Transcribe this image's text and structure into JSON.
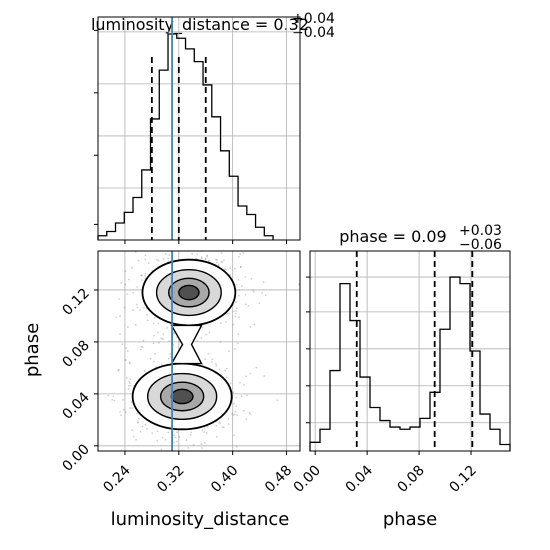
{
  "chart_data": [
    {
      "type": "histogram",
      "panel": "luminosity_distance 1D marginal",
      "title_param": "luminosity_distance",
      "title_value": "0.32",
      "title_plus": "+0.04",
      "title_minus": "−0.04",
      "xlim": [
        0.2,
        0.5
      ],
      "grid": true,
      "bin_edges": [
        0.2,
        0.213,
        0.226,
        0.239,
        0.252,
        0.265,
        0.278,
        0.291,
        0.304,
        0.317,
        0.33,
        0.343,
        0.356,
        0.369,
        0.382,
        0.395,
        0.408,
        0.421,
        0.434,
        0.447,
        0.46
      ],
      "counts": [
        0.02,
        0.04,
        0.08,
        0.13,
        0.2,
        0.33,
        0.57,
        0.8,
        0.97,
        0.95,
        0.9,
        0.84,
        0.73,
        0.58,
        0.42,
        0.3,
        0.16,
        0.12,
        0.06,
        0.02
      ],
      "quantile_lines": [
        0.28,
        0.32,
        0.36
      ],
      "truth": 0.31
    },
    {
      "type": "histogram",
      "panel": "phase 1D marginal",
      "title_param": "phase",
      "title_value": "0.09",
      "title_plus": "+0.03",
      "title_minus": "−0.06",
      "xlim": [
        -0.004,
        0.15
      ],
      "grid": true,
      "bin_edges": [
        -0.004,
        0.0037,
        0.0114,
        0.0191,
        0.0268,
        0.0345,
        0.0422,
        0.0499,
        0.0576,
        0.0653,
        0.073,
        0.0807,
        0.0884,
        0.0961,
        0.1038,
        0.1115,
        0.1192,
        0.1269,
        0.1346,
        0.1423,
        0.15
      ],
      "counts": [
        0.04,
        0.1,
        0.37,
        0.77,
        0.6,
        0.34,
        0.2,
        0.14,
        0.11,
        0.1,
        0.11,
        0.15,
        0.27,
        0.56,
        0.8,
        0.77,
        0.46,
        0.17,
        0.1,
        0.03
      ],
      "quantile_lines": [
        0.032,
        0.092,
        0.121
      ]
    },
    {
      "type": "contour_density",
      "panel": "2D luminosity_distance vs phase",
      "x_label": "luminosity_distance",
      "y_label": "phase",
      "xlim": [
        0.2,
        0.5
      ],
      "ylim": [
        -0.004,
        0.15
      ],
      "x_ticks": [
        "0.24",
        "0.32",
        "0.40",
        "0.48"
      ],
      "x_tick_values": [
        0.24,
        0.32,
        0.4,
        0.48
      ],
      "y_ticks": [
        "0.00",
        "0.04",
        "0.08",
        "0.12"
      ],
      "y_tick_values": [
        0.0,
        0.04,
        0.08,
        0.12
      ],
      "modes": [
        {
          "x": 0.335,
          "y": 0.118,
          "sx": 0.03,
          "sy": 0.011
        },
        {
          "x": 0.325,
          "y": 0.038,
          "sx": 0.032,
          "sy": 0.011
        }
      ],
      "truth_x": 0.31,
      "grid": true
    },
    {
      "type": "axis",
      "panel": "phase axis under 1D phase",
      "x_label": "phase",
      "x_ticks": [
        "0.00",
        "0.04",
        "0.08",
        "0.12"
      ],
      "x_tick_values": [
        0.0,
        0.04,
        0.08,
        0.12
      ]
    }
  ],
  "colors": {
    "truth": "#4682b4",
    "hist": "#000000",
    "grid": "#b0b0b0"
  }
}
